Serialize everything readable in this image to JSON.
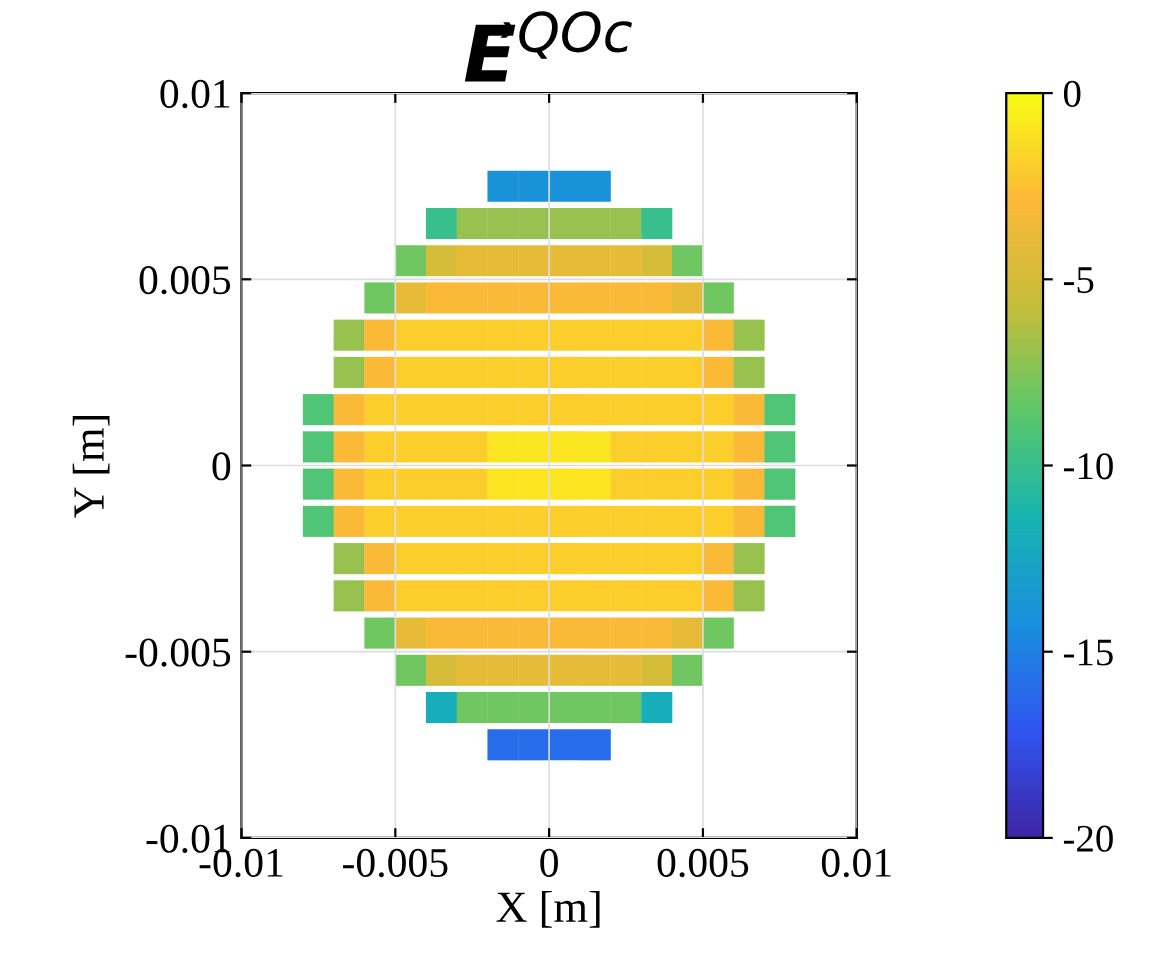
{
  "chart_data": {
    "type": "scatter",
    "title": "E⃗$^{QOc}$",
    "xlabel": "X [m]",
    "ylabel": "Y [m]",
    "clabel": null,
    "xlim": [
      -0.01,
      0.01
    ],
    "ylim": [
      -0.01,
      0.01
    ],
    "xticks": [
      -0.01,
      -0.005,
      0,
      0.005,
      0.01
    ],
    "yticks": [
      -0.01,
      -0.005,
      0,
      0.005,
      0.01
    ],
    "clim": [
      -20,
      0
    ],
    "cticks": [
      -20,
      -15,
      -10,
      -5,
      0
    ],
    "grid": true,
    "marker": "square",
    "x": [
      -0.0015,
      -0.0005,
      0.0005,
      0.0015,
      -0.0035,
      -0.0025,
      -0.0015,
      -0.0005,
      0.0005,
      0.0015,
      0.0025,
      0.0035,
      -0.0045,
      -0.0035,
      -0.0025,
      -0.0015,
      -0.0005,
      0.0005,
      0.0015,
      0.0025,
      0.0035,
      0.0045,
      -0.0055,
      -0.0045,
      -0.0035,
      -0.0025,
      -0.0015,
      -0.0005,
      0.0005,
      0.0015,
      0.0025,
      0.0035,
      0.0045,
      0.0055,
      -0.0065,
      -0.0055,
      -0.0045,
      -0.0035,
      -0.0025,
      -0.0015,
      -0.0005,
      0.0005,
      0.0015,
      0.0025,
      0.0035,
      0.0045,
      0.0055,
      0.0065,
      -0.0065,
      -0.0055,
      -0.0045,
      -0.0035,
      -0.0025,
      -0.0015,
      -0.0005,
      0.0005,
      0.0015,
      0.0025,
      0.0035,
      0.0045,
      0.0055,
      0.0065,
      -0.0075,
      -0.0065,
      -0.0055,
      -0.0045,
      -0.0035,
      -0.0025,
      -0.0015,
      -0.0005,
      0.0005,
      0.0015,
      0.0025,
      0.0035,
      0.0045,
      0.0055,
      0.0065,
      0.0075,
      -0.0075,
      -0.0065,
      -0.0055,
      -0.0045,
      -0.0035,
      -0.0025,
      -0.0015,
      -0.0005,
      0.0005,
      0.0015,
      0.0025,
      0.0035,
      0.0045,
      0.0055,
      0.0065,
      0.0075,
      -0.0075,
      -0.0065,
      -0.0055,
      -0.0045,
      -0.0035,
      -0.0025,
      -0.0015,
      -0.0005,
      0.0005,
      0.0015,
      0.0025,
      0.0035,
      0.0045,
      0.0055,
      0.0065,
      0.0075,
      -0.0075,
      -0.0065,
      -0.0055,
      -0.0045,
      -0.0035,
      -0.0025,
      -0.0015,
      -0.0005,
      0.0005,
      0.0015,
      0.0025,
      0.0035,
      0.0045,
      0.0055,
      0.0065,
      0.0075,
      -0.0065,
      -0.0055,
      -0.0045,
      -0.0035,
      -0.0025,
      -0.0015,
      -0.0005,
      0.0005,
      0.0015,
      0.0025,
      0.0035,
      0.0045,
      0.0055,
      0.0065,
      -0.0065,
      -0.0055,
      -0.0045,
      -0.0035,
      -0.0025,
      -0.0015,
      -0.0005,
      0.0005,
      0.0015,
      0.0025,
      0.0035,
      0.0045,
      0.0055,
      0.0065,
      -0.0055,
      -0.0045,
      -0.0035,
      -0.0025,
      -0.0015,
      -0.0005,
      0.0005,
      0.0015,
      0.0025,
      0.0035,
      0.0045,
      0.0055,
      -0.0045,
      -0.0035,
      -0.0025,
      -0.0015,
      -0.0005,
      0.0005,
      0.0015,
      0.0025,
      0.0035,
      0.0045,
      -0.0035,
      -0.0025,
      -0.0015,
      -0.0005,
      0.0005,
      0.0015,
      0.0025,
      0.0035,
      -0.0015,
      -0.0005,
      0.0005,
      0.0015
    ],
    "values": [
      0.0075,
      0.0075,
      0.0075,
      0.0075,
      0.0065,
      0.0065,
      0.0065,
      0.0065,
      0.0065,
      0.0065,
      0.0065,
      0.0065,
      0.0055,
      0.0055,
      0.0055,
      0.0055,
      0.0055,
      0.0055,
      0.0055,
      0.0055,
      0.0055,
      0.0055,
      0.0045,
      0.0045,
      0.0045,
      0.0045,
      0.0045,
      0.0045,
      0.0045,
      0.0045,
      0.0045,
      0.0045,
      0.0045,
      0.0045,
      0.0035,
      0.0035,
      0.0035,
      0.0035,
      0.0035,
      0.0035,
      0.0035,
      0.0035,
      0.0035,
      0.0035,
      0.0035,
      0.0035,
      0.0035,
      0.0035,
      0.0025,
      0.0025,
      0.0025,
      0.0025,
      0.0025,
      0.0025,
      0.0025,
      0.0025,
      0.0025,
      0.0025,
      0.0025,
      0.0025,
      0.0025,
      0.0025,
      0.0015,
      0.0015,
      0.0015,
      0.0015,
      0.0015,
      0.0015,
      0.0015,
      0.0015,
      0.0015,
      0.0015,
      0.0015,
      0.0015,
      0.0015,
      0.0015,
      0.0015,
      0.0015,
      0.0005,
      0.0005,
      0.0005,
      0.0005,
      0.0005,
      0.0005,
      0.0005,
      0.0005,
      0.0005,
      0.0005,
      0.0005,
      0.0005,
      0.0005,
      0.0005,
      0.0005,
      0.0005,
      -0.0005,
      -0.0005,
      -0.0005,
      -0.0005,
      -0.0005,
      -0.0005,
      -0.0005,
      -0.0005,
      -0.0005,
      -0.0005,
      -0.0005,
      -0.0005,
      -0.0005,
      -0.0005,
      -0.0005,
      -0.0005,
      -0.0015,
      -0.0015,
      -0.0015,
      -0.0015,
      -0.0015,
      -0.0015,
      -0.0015,
      -0.0015,
      -0.0015,
      -0.0015,
      -0.0015,
      -0.0015,
      -0.0015,
      -0.0015,
      -0.0015,
      -0.0015,
      -0.0025,
      -0.0025,
      -0.0025,
      -0.0025,
      -0.0025,
      -0.0025,
      -0.0025,
      -0.0025,
      -0.0025,
      -0.0025,
      -0.0025,
      -0.0025,
      -0.0025,
      -0.0025,
      -0.0035,
      -0.0035,
      -0.0035,
      -0.0035,
      -0.0035,
      -0.0035,
      -0.0035,
      -0.0035,
      -0.0035,
      -0.0035,
      -0.0035,
      -0.0035,
      -0.0035,
      -0.0035,
      -0.0045,
      -0.0045,
      -0.0045,
      -0.0045,
      -0.0045,
      -0.0045,
      -0.0045,
      -0.0045,
      -0.0045,
      -0.0045,
      -0.0045,
      -0.0045,
      -0.0055,
      -0.0055,
      -0.0055,
      -0.0055,
      -0.0055,
      -0.0055,
      -0.0055,
      -0.0055,
      -0.0055,
      -0.0055,
      -0.0065,
      -0.0065,
      -0.0065,
      -0.0065,
      -0.0065,
      -0.0065,
      -0.0065,
      -0.0065,
      -0.0075,
      -0.0075,
      -0.0075,
      -0.0075
    ],
    "cvalues": [
      -14,
      -14,
      -14,
      -14,
      -10,
      -7,
      -7,
      -7,
      -7,
      -7,
      -7,
      -10,
      -8,
      -5,
      -4,
      -4,
      -4,
      -4,
      -4,
      -4,
      -5,
      -8,
      -8,
      -4,
      -3,
      -3,
      -3,
      -3,
      -3,
      -3,
      -3,
      -3,
      -4,
      -8,
      -7,
      -3,
      -2,
      -2,
      -2,
      -2,
      -2,
      -2,
      -2,
      -2,
      -2,
      -2,
      -3,
      -7,
      -7,
      -3,
      -2,
      -2,
      -2,
      -2,
      -2,
      -2,
      -2,
      -2,
      -2,
      -2,
      -3,
      -7,
      -9,
      -3,
      -2,
      -2,
      -2,
      -2,
      -2,
      -2,
      -2,
      -2,
      -2,
      -2,
      -2,
      -2,
      -3,
      -9,
      -9,
      -3,
      -2,
      -2,
      -2,
      -2,
      -1,
      -1,
      -1,
      -1,
      -2,
      -2,
      -2,
      -2,
      -3,
      -9,
      -9,
      -3,
      -2,
      -2,
      -2,
      -2,
      -1,
      -1,
      -1,
      -1,
      -2,
      -2,
      -2,
      -2,
      -3,
      -9,
      -9,
      -3,
      -2,
      -2,
      -2,
      -2,
      -2,
      -2,
      -2,
      -2,
      -2,
      -2,
      -2,
      -2,
      -3,
      -9,
      -7,
      -3,
      -2,
      -2,
      -2,
      -2,
      -2,
      -2,
      -2,
      -2,
      -2,
      -2,
      -3,
      -7,
      -7,
      -3,
      -2,
      -2,
      -2,
      -2,
      -2,
      -2,
      -2,
      -2,
      -2,
      -2,
      -3,
      -7,
      -8,
      -4,
      -3,
      -3,
      -3,
      -3,
      -3,
      -3,
      -3,
      -3,
      -4,
      -8,
      -8,
      -5,
      -4,
      -4,
      -4,
      -4,
      -4,
      -4,
      -5,
      -8,
      -12,
      -8,
      -8,
      -8,
      -8,
      -8,
      -8,
      -12,
      -16,
      -16,
      -16,
      -16
    ]
  }
}
